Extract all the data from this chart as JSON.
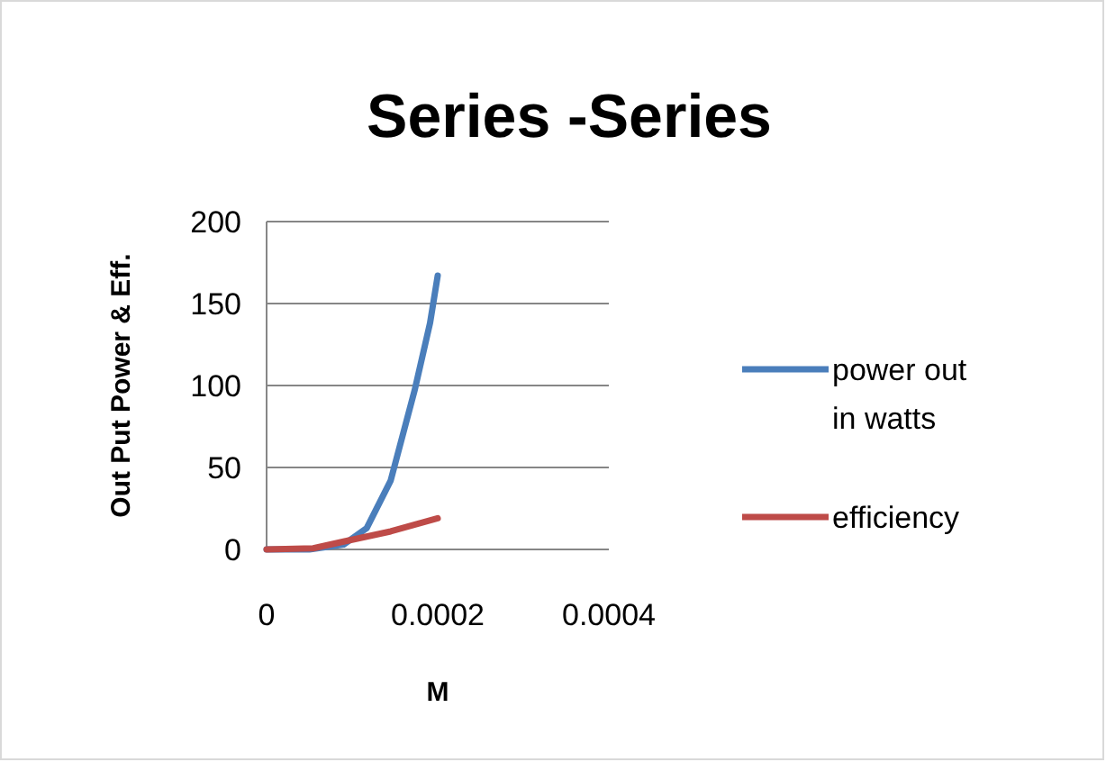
{
  "chart_data": {
    "type": "line",
    "title": "Series -Series",
    "xlabel": "M",
    "ylabel": "Out Put Power & Eff.",
    "xlim": [
      0,
      0.0004
    ],
    "xticks": [
      0,
      0.0002,
      0.0004
    ],
    "ylim": [
      0,
      200
    ],
    "yticks": [
      0,
      50,
      100,
      150,
      200
    ],
    "grid": "y",
    "legend": "right",
    "marker": "none",
    "line_style": "solid",
    "series": [
      {
        "name": "power out in watts",
        "color": "#4a7ebb",
        "x": [
          0,
          5e-05,
          9e-05,
          0.000117,
          0.000145,
          0.000173,
          0.000191,
          0.0002
        ],
        "values": [
          0,
          0,
          3,
          13,
          42,
          97,
          138,
          167
        ]
      },
      {
        "name": "efficiency",
        "color": "#be4b48",
        "x": [
          0,
          5.45e-05,
          9e-05,
          0.000145,
          0.0002
        ],
        "values": [
          0,
          0.7,
          4.8,
          11,
          19
        ]
      }
    ]
  }
}
